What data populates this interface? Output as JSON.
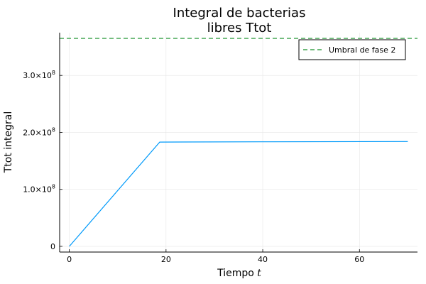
{
  "chart_data": {
    "type": "line",
    "title_lines": [
      "Integral de bacterias",
      "libres Ttot"
    ],
    "xlabel": "Tiempo",
    "xlabel_var": "t",
    "ylabel": "Ttot integral",
    "xlim": [
      -2,
      72
    ],
    "ylim": [
      -10000000.0,
      375000000.0
    ],
    "x_ticks": [
      0,
      20,
      40,
      60
    ],
    "x_tick_labels": [
      "0",
      "20",
      "40",
      "60"
    ],
    "y_ticks": [
      0,
      100000000.0,
      200000000.0,
      300000000.0
    ],
    "y_tick_labels": [
      {
        "base": "0",
        "exp": ""
      },
      {
        "base": "1.0×10",
        "exp": "8"
      },
      {
        "base": "2.0×10",
        "exp": "8"
      },
      {
        "base": "3.0×10",
        "exp": "8"
      }
    ],
    "grid": true,
    "legend_position": "top-right",
    "series": [
      {
        "color": "#009AFA",
        "x": [
          0,
          18.7,
          40,
          70
        ],
        "y": [
          0,
          183000000.0,
          183500000.0,
          184000000.0
        ]
      }
    ],
    "hlines": [
      {
        "name": "Umbral de fase 2",
        "y": 365000000.0,
        "color": "#3DA44D",
        "dashed": true
      }
    ]
  }
}
